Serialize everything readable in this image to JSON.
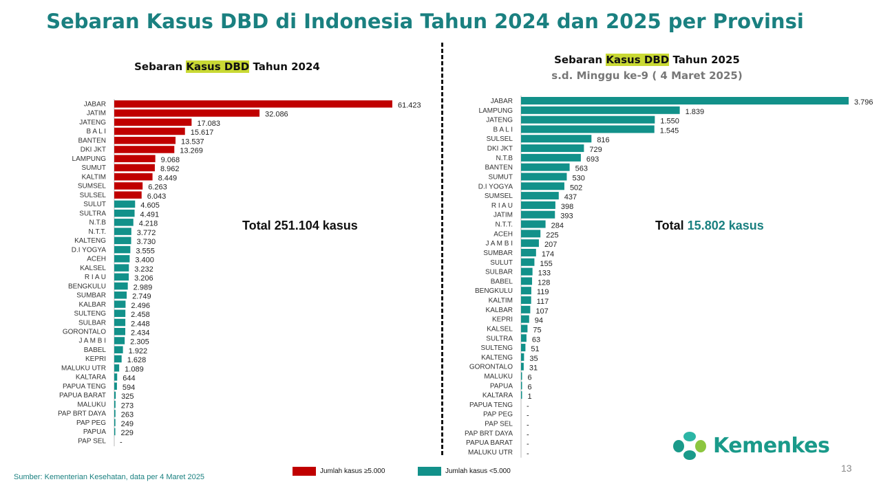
{
  "title": "Sebaran Kasus DBD di Indonesia Tahun 2024 dan 2025 per Provinsi",
  "colors": {
    "accent": "#1a8080",
    "high": "#c00000",
    "low": "#12918a",
    "highlight": "#c9d934"
  },
  "chart_data": [
    {
      "type": "bar",
      "orientation": "horizontal",
      "title_parts": [
        "Sebaran ",
        "Kasus DBD",
        " Tahun 2024"
      ],
      "total_label": "Total 251.104 kasus",
      "categories": [
        "JABAR",
        "JATIM",
        "JATENG",
        "B A L I",
        "BANTEN",
        "DKI JKT",
        "LAMPUNG",
        "SUMUT",
        "KALTIM",
        "SUMSEL",
        "SULSEL",
        "SULUT",
        "SULTRA",
        "N.T.B",
        "N.T.T.",
        "KALTENG",
        "D.I YOGYA",
        "ACEH",
        "KALSEL",
        "R I A U",
        "BENGKULU",
        "SUMBAR",
        "KALBAR",
        "SULTENG",
        "SULBAR",
        "GORONTALO",
        "J A M B I",
        "BABEL",
        "KEPRI",
        "MALUKU UTR",
        "KALTARA",
        "PAPUA TENG",
        "PAPUA BARAT",
        "MALUKU",
        "PAP BRT DAYA",
        "PAP PEG",
        "PAPUA",
        "PAP SEL"
      ],
      "values": [
        61423,
        32086,
        17083,
        15617,
        13537,
        13269,
        9068,
        8962,
        8449,
        6263,
        6043,
        4605,
        4491,
        4218,
        3772,
        3730,
        3555,
        3400,
        3232,
        3206,
        2989,
        2749,
        2496,
        2458,
        2448,
        2434,
        2305,
        1922,
        1628,
        1089,
        644,
        594,
        325,
        273,
        263,
        249,
        229,
        0
      ],
      "value_labels": [
        "61.423",
        "32.086",
        "17.083",
        "15.617",
        "13.537",
        "13.269",
        "9.068",
        "8.962",
        "8.449",
        "6.263",
        "6.043",
        "4.605",
        "4.491",
        "4.218",
        "3.772",
        "3.730",
        "3.555",
        "3.400",
        "3.232",
        "3.206",
        "2.989",
        "2.749",
        "2.496",
        "2.458",
        "2.448",
        "2.434",
        "2.305",
        "1.922",
        "1.628",
        "1.089",
        "644",
        "594",
        "325",
        "273",
        "263",
        "249",
        "229",
        "-"
      ],
      "xlim": [
        0,
        61423
      ]
    },
    {
      "type": "bar",
      "orientation": "horizontal",
      "title_parts": [
        "Sebaran ",
        "Kasus DBD",
        " Tahun 2025"
      ],
      "subtitle": "s.d. Minggu ke-9 ( 4 Maret 2025)",
      "total_prefix": "Total ",
      "total_value": "15.802 kasus",
      "categories": [
        "JABAR",
        "LAMPUNG",
        "JATENG",
        "B A L I",
        "SULSEL",
        "DKI JKT",
        "N.T.B",
        "BANTEN",
        "SUMUT",
        "D.I YOGYA",
        "SUMSEL",
        "R I A U",
        "JATIM",
        "N.T.T.",
        "ACEH",
        "J A M B I",
        "SUMBAR",
        "SULUT",
        "SULBAR",
        "BABEL",
        "BENGKULU",
        "KALTIM",
        "KALBAR",
        "KEPRI",
        "KALSEL",
        "SULTRA",
        "SULTENG",
        "KALTENG",
        "GORONTALO",
        "MALUKU",
        "PAPUA",
        "KALTARA",
        "PAPUA TENG",
        "PAP PEG",
        "PAP SEL",
        "PAP BRT DAYA",
        "PAPUA BARAT",
        "MALUKU UTR"
      ],
      "values": [
        3796,
        1839,
        1550,
        1545,
        816,
        729,
        693,
        563,
        530,
        502,
        437,
        398,
        393,
        284,
        225,
        207,
        174,
        155,
        133,
        128,
        119,
        117,
        107,
        94,
        75,
        63,
        51,
        35,
        31,
        6,
        6,
        1,
        0,
        0,
        0,
        0,
        0,
        0
      ],
      "value_labels": [
        "3.796",
        "1.839",
        "1.550",
        "1.545",
        "816",
        "729",
        "693",
        "563",
        "530",
        "502",
        "437",
        "398",
        "393",
        "284",
        "225",
        "207",
        "174",
        "155",
        "133",
        "128",
        "119",
        "117",
        "107",
        "94",
        "75",
        "63",
        "51",
        "35",
        "31",
        "6",
        "6",
        "1",
        "-",
        "-",
        "-",
        "-",
        "-",
        "-"
      ],
      "xlim": [
        0,
        3796
      ]
    }
  ],
  "legend": {
    "high_label": "Jumlah kasus ≥5.000",
    "low_label": "Jumlah kasus <5.000",
    "threshold": 5000
  },
  "source": "Sumber: Kementerian Kesehatan, data per 4 Maret 2025",
  "page_number": "13",
  "logo_text": "Kemenkes"
}
